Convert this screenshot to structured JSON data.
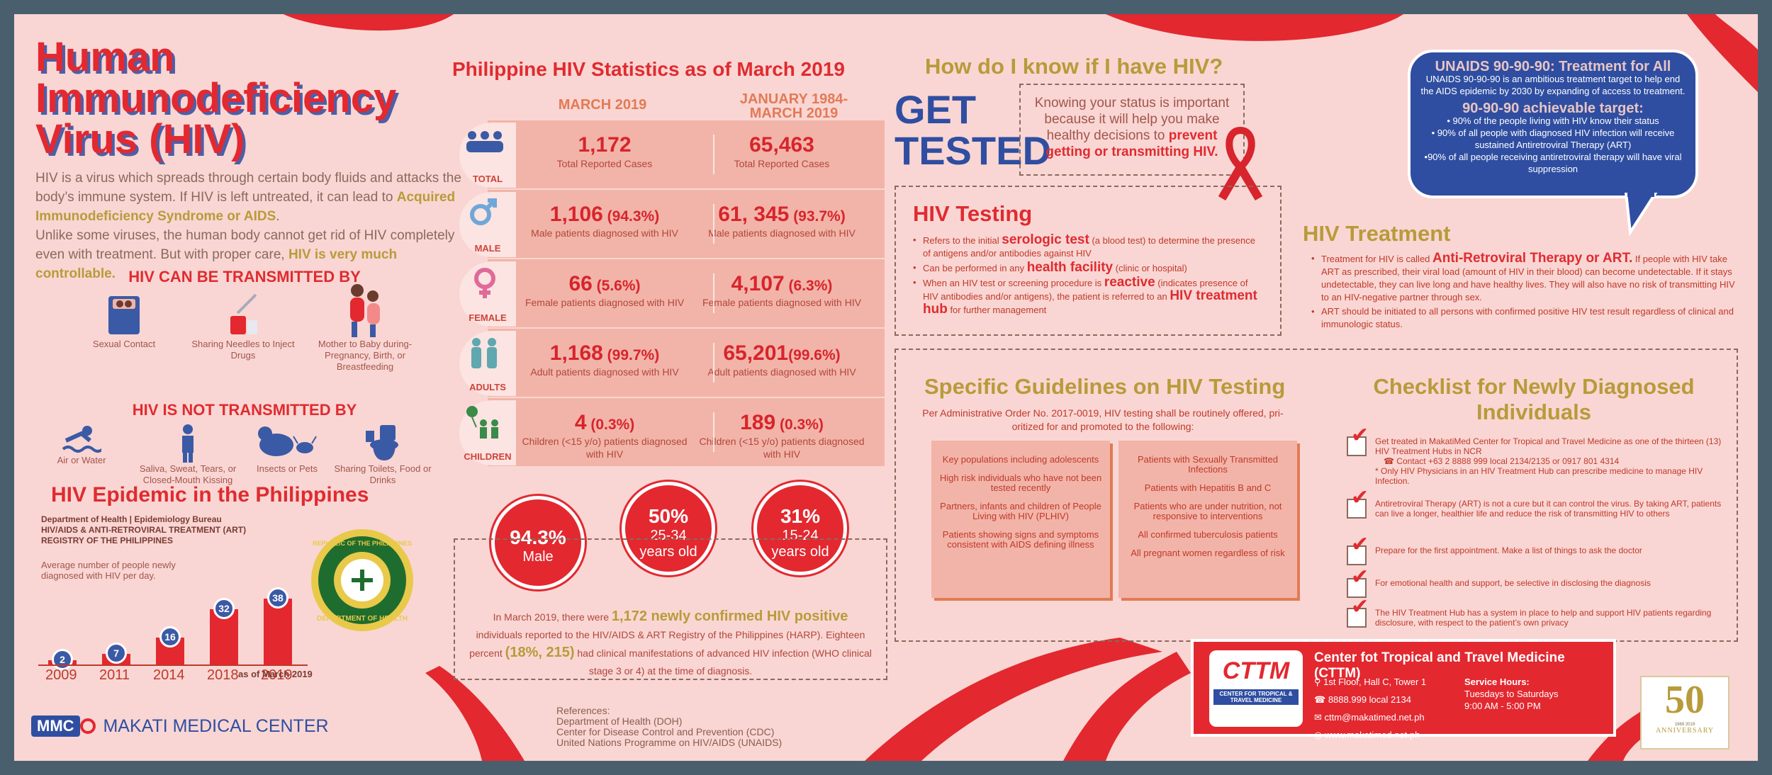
{
  "title_lines": [
    "Human",
    "Immunodeficiency",
    "Virus (HIV)"
  ],
  "intro": {
    "p1": "HIV is a virus which spreads through certain body fluids and attacks the body’s immune system. If HIV is left untreated, it can lead to ",
    "p1_hl": "Acquired Immunodeficiency Syndrome or AIDS",
    "p1_end": ".",
    "p2": "Unlike some viruses, the human body cannot get rid of HIV completely even with treatment. But with proper care, ",
    "p2_hl": "HIV is very much controllable."
  },
  "transmitted": {
    "heading": "HIV CAN  BE TRANSMITTED BY",
    "items": [
      {
        "label": "Sexual Contact",
        "icon": "bed-icon"
      },
      {
        "label": "Sharing Needles to Inject Drugs",
        "icon": "syringe-icon"
      },
      {
        "label": "Mother to Baby during- Pregnancy, Birth, or Breastfeeding",
        "icon": "mother-baby-icon"
      }
    ]
  },
  "not_transmitted": {
    "heading": "HIV IS NOT TRANSMITTED BY",
    "items": [
      {
        "label": "Air or Water",
        "icon": "swimmer-icon"
      },
      {
        "label": "Saliva, Sweat, Tears, or Closed-Mouth Kissing",
        "icon": "person-icon"
      },
      {
        "label": "Insects or Pets",
        "icon": "pets-icon"
      },
      {
        "label": "Sharing Toilets, Food or Drinks",
        "icon": "toilet-icon"
      }
    ]
  },
  "epidemic": {
    "title": "HIV Epidemic in the Philippines",
    "source1": "Department of Health | Epidemiology Bureau",
    "source2": "HIV/AIDS & ANTI-RETROVIRAL TREATMENT (ART)",
    "source3": "REGISTRY OF THE PHILIPPINES",
    "avg_label": "Average number of people newly diagnosed with HIV per day.",
    "note": "as of March 2019",
    "seal_top": "REPUBLIC OF THE PHILIPPINES",
    "seal_bottom": "DEPARTMENT OF HEALTH"
  },
  "chart_data": {
    "type": "bar",
    "categories": [
      "2009",
      "2011",
      "2014",
      "2018",
      "2019"
    ],
    "values": [
      2,
      7,
      16,
      32,
      38
    ],
    "title": "",
    "xlabel": "",
    "ylabel": "Average number of people newly diagnosed with HIV per day."
  },
  "stats": {
    "title": "Philippine HIV Statistics as of March 2019",
    "col1": "MARCH 2019",
    "col2a": "JANUARY 1984-",
    "col2b": "MARCH 2019",
    "rows": [
      {
        "tab": "TOTAL",
        "icon": "group-icon",
        "v1": "1,172",
        "v1p": "",
        "l1": "Total Reported Cases",
        "v2": "65,463",
        "v2p": "",
        "l2": "Total Reported Cases"
      },
      {
        "tab": "MALE",
        "icon": "male-symbol-icon",
        "v1": "1,106",
        "v1p": " (94.3%)",
        "l1": "Male patients diagnosed with HIV",
        "v2": "61, 345",
        "v2p": " (93.7%)",
        "l2": "Male patients diagnosed with HIV"
      },
      {
        "tab": "FEMALE",
        "icon": "female-symbol-icon",
        "v1": "66",
        "v1p": " (5.6%)",
        "l1": "Female patients diagnosed with HIV",
        "v2": "4,107",
        "v2p": " (6.3%)",
        "l2": "Female patients diagnosed with HIV"
      },
      {
        "tab": "ADULTS",
        "icon": "adults-icon",
        "v1": "1,168",
        "v1p": " (99.7%)",
        "l1": "Adult patients diagnosed with HIV",
        "v2": "65,201",
        "v2p": "(99.6%)",
        "l2": "Adult patients diagnosed with HIV"
      },
      {
        "tab": "CHILDREN",
        "icon": "children-icon",
        "v1": "4",
        "v1p": " (0.3%)",
        "l1": "Children (<15 y/o) patients diagnosed with HIV",
        "v2": "189",
        "v2p": " (0.3%)",
        "l2": "Children (<15 y/o) patients diagnosed with HIV"
      }
    ]
  },
  "circles": [
    {
      "big": "94.3%",
      "small": "Male"
    },
    {
      "big": "50%",
      "small": "25-34",
      "small2": "years old"
    },
    {
      "big": "31%",
      "small": "15-24",
      "small2": "years old"
    }
  ],
  "summary": {
    "a": "In March 2019, there were ",
    "b": "1,172 newly confirmed HIV positive",
    "c": " individuals reported to the HIV/AIDS & ART Registry of the Philippines (HARP). Eighteen percent ",
    "d": "(18%, 215)",
    "e": " had clinical manifestations of advanced HIV infection (WHO clinical stage 3 or 4) at the time of diagnosis."
  },
  "references": [
    "References:",
    "Department of Health (DOH)",
    "Center for Disease Control and Prevention (CDC)",
    "United Nations Programme on HIV/AIDS (UNAIDS)"
  ],
  "how": {
    "title": "How do I know if I have HIV?",
    "get1": "GET",
    "get2": "TESTED",
    "know_a": "Knowing your status is important because it will help you make healthy decisions to ",
    "know_b": "prevent getting or transmitting HIV."
  },
  "testing": {
    "title": "HIV Testing",
    "b1a": "Refers to the initial ",
    "b1b": "serologic test",
    "b1c": " (a blood test) to determine the presence of antigens and/or antibodies against HIV",
    "b2a": "Can be performed in any ",
    "b2b": "health facility",
    "b2c": " (clinic or hospital)",
    "b3a": "When an HIV test or screening procedure is ",
    "b3b": "reactive",
    "b3c": " (indicates presence of HIV antibodies and/or antigens), the patient is referred to an ",
    "b3d": "HIV treatment hub",
    "b3e": " for further management"
  },
  "unaids": {
    "t1": "UNAIDS 90-90-90: Treatment for All",
    "p1": "UNAIDS 90-90-90 is an ambitious treatment target to help end the AIDS epidemic by 2030 by expanding of access to treatment.",
    "t2": "90-90-90 achievable target:",
    "i1": "• 90% of the people living with HIV know their status",
    "i2": "• 90% of all people with diagnosed HIV infection will receive sustained Antiretroviral Therapy (ART)",
    "i3": "•90% of all people receiving antiretroviral therapy will have viral suppression"
  },
  "treatment": {
    "title": "HIV Treatment",
    "b1a": "Treatment for HIV is called ",
    "b1b": "Anti-Retroviral Therapy or ART.",
    "b1c": " If people with HIV take ART as prescribed, their viral load (amount of HIV in their blood) can become undetectable. If it stays undetectable, they can live long and have healthy lives. They will also have no risk of transmitting HIV to an HIV-negative partner through sex.",
    "b2": "ART should be initiated to all persons with confirmed positive HIV test result regardless of clinical and immunologic status."
  },
  "guidelines": {
    "title": "Specific Guidelines on HIV Testing",
    "sub": "Per Administrative Order No. 2017-0019, HIV testing shall be routinely offered, pri- oritized for and promoted to the following:",
    "left": [
      "Key populations including adolescents",
      "High risk individuals who have not been tested recently",
      "Partners, infants and children of People Living with HIV (PLHIV)",
      "Patients showing signs and symptoms consistent with AIDS defining illness"
    ],
    "right": [
      "Patients with Sexually Transmitted Infections",
      "Patients with Hepatitis B and C",
      "Patients who are under nutrition, not responsive to interventions",
      "All confirmed tuberculosis patients",
      "All pregnant women regardless of risk"
    ]
  },
  "checklist": {
    "title": "Checklist for Newly Diagnosed Individuals",
    "i1": "Get treated in MakatiMed Center for Tropical and Travel Medicine as one of the thirteen (13) HIV Treatment Hubs in NCR",
    "i1c": "Contact +63 2 8888 999 local 2134/2135 or 0917 801 4314",
    "i1n": "* Only HIV Physicians in an HIV Treatment Hub can prescribe medicine to manage HIV Infection.",
    "i2": "Antiretroviral Therapy (ART) is not a cure but it can control the virus. By taking ART, patients can live a longer, healthier life and reduce the risk of transmitting HIV to others",
    "i3": "Prepare for the first appointment. Make a list of things to ask the doctor",
    "i4": "For emotional health and support, be selective in disclosing the diagnosis",
    "i5": "The HIV Treatment Hub has a system in place to help and support HIV patients regarding disclosure, with respect to the patient’s own privacy"
  },
  "cttm": {
    "title": "Center fot Tropical and Travel Medicine (CTTM)",
    "logo": "CTTM",
    "logo_sub": "CENTER FOR TROPICAL & TRAVEL MEDICINE",
    "address": "1st Floor, Hall C, Tower 1",
    "phone": "8888.999 local 2134",
    "email": "cttm@makatimed.net.ph",
    "web": "www.makatimed.net.ph",
    "hours_t": "Service Hours:",
    "hours1": "Tuesdays to Saturdays",
    "hours2": "9:00 AM - 5:00 PM"
  },
  "anniv": {
    "num": "50",
    "word": "ANNIVERSARY",
    "years": "1969 2019"
  },
  "mmc": {
    "name": "MAKATI MEDICAL CENTER",
    "logo": "MMC"
  },
  "colors": {
    "red": "#e32830",
    "blue": "#2f4ea1",
    "gold": "#b89b3a",
    "bg": "#f9d6d3",
    "frame": "#4a5f6e"
  }
}
